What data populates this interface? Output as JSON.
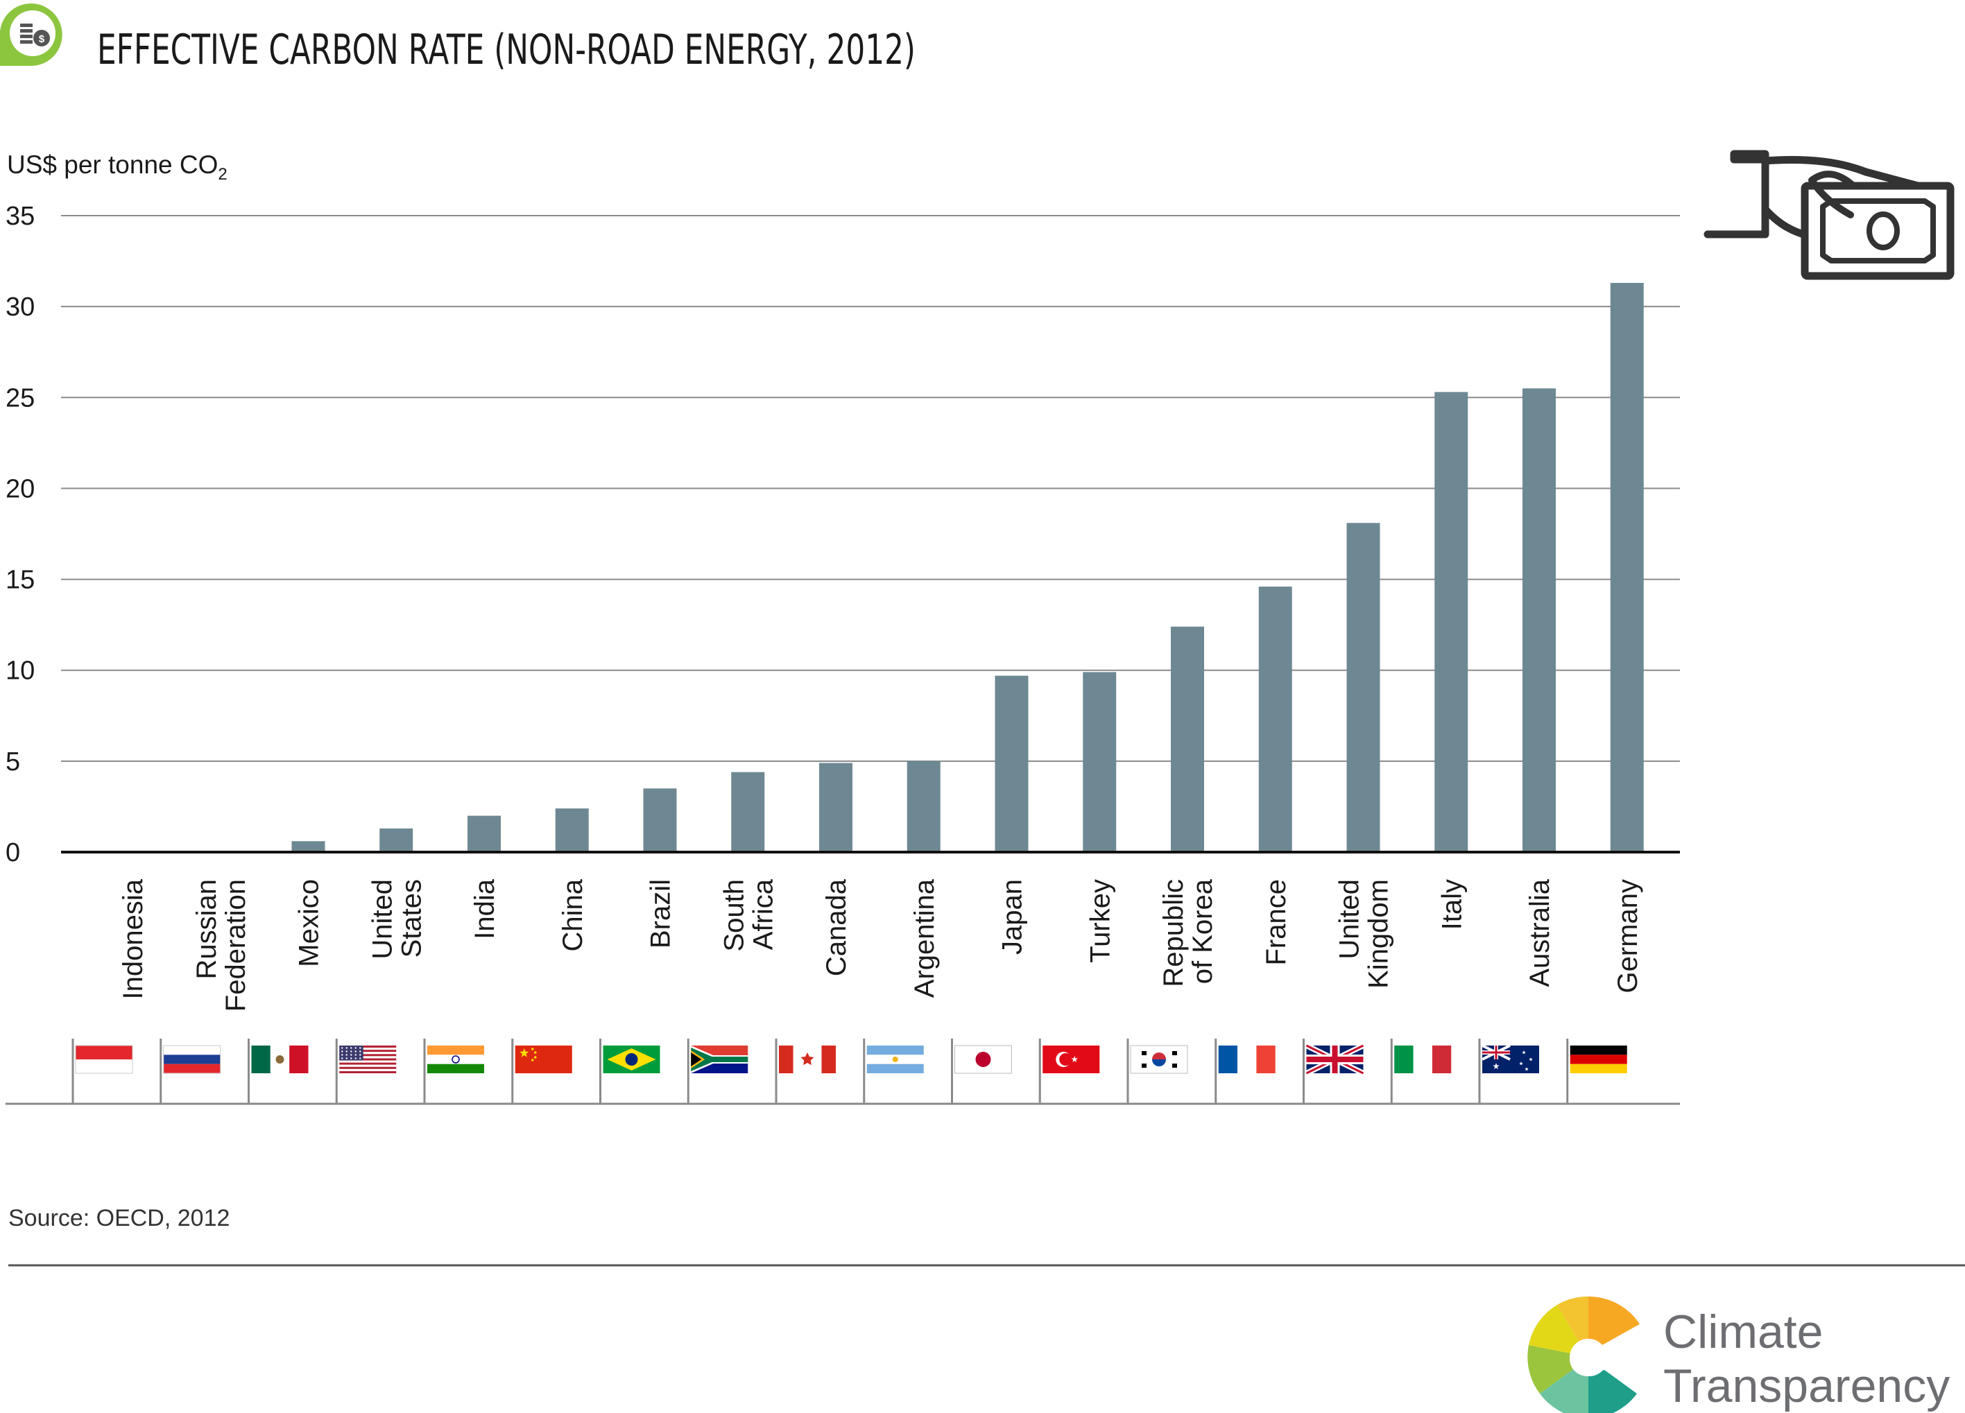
{
  "header": {
    "title": "EFFECTIVE CARBON RATE (NON-ROAD ENERGY, 2012)",
    "badge_icon": "coins-icon"
  },
  "colors": {
    "bar": "#6e8893",
    "grid": "#8a8a8a",
    "axis": "#111111",
    "text": "#1a1a1a",
    "badge_green": "#8cc63f"
  },
  "chart_data": {
    "type": "bar",
    "title": "EFFECTIVE CARBON RATE (NON-ROAD ENERGY, 2012)",
    "ylabel": "US$ per tonne CO",
    "ylabel_subscript": "2",
    "xlabel": "",
    "ylim": [
      0,
      35
    ],
    "yticks": [
      0,
      5,
      10,
      15,
      20,
      25,
      30,
      35
    ],
    "grid": true,
    "categories": [
      "Indonesia",
      "Russian Federation",
      "Mexico",
      "United States",
      "India",
      "China",
      "Brazil",
      "South Africa",
      "Canada",
      "Argentina",
      "Japan",
      "Turkey",
      "Republic of Korea",
      "France",
      "United Kingdom",
      "Italy",
      "Australia",
      "Germany"
    ],
    "category_label_lines": [
      [
        "Indonesia"
      ],
      [
        "Russian",
        "Federation"
      ],
      [
        "Mexico"
      ],
      [
        "United",
        "States"
      ],
      [
        "India"
      ],
      [
        "China"
      ],
      [
        "Brazil"
      ],
      [
        "South",
        "Africa"
      ],
      [
        "Canada"
      ],
      [
        "Argentina"
      ],
      [
        "Japan"
      ],
      [
        "Turkey"
      ],
      [
        "Republic",
        "of Korea"
      ],
      [
        "France"
      ],
      [
        "United",
        "Kingdom"
      ],
      [
        "Italy"
      ],
      [
        "Australia"
      ],
      [
        "Germany"
      ]
    ],
    "values": [
      0,
      0,
      0.6,
      1.3,
      2.0,
      2.4,
      3.5,
      4.4,
      4.9,
      5.0,
      9.7,
      9.9,
      12.4,
      14.6,
      18.1,
      25.3,
      25.5,
      31.3
    ],
    "flags": [
      "indonesia-flag-icon",
      "russia-flag-icon",
      "mexico-flag-icon",
      "united-states-flag-icon",
      "india-flag-icon",
      "china-flag-icon",
      "brazil-flag-icon",
      "south-africa-flag-icon",
      "canada-flag-icon",
      "argentina-flag-icon",
      "japan-flag-icon",
      "turkey-flag-icon",
      "korea-flag-icon",
      "france-flag-icon",
      "united-kingdom-flag-icon",
      "italy-flag-icon",
      "australia-flag-icon",
      "germany-flag-icon"
    ]
  },
  "source": "Source: OECD, 2012",
  "decoration": {
    "icon": "hand-money-icon"
  },
  "logo": {
    "line1": "Climate",
    "line2": "Transparency",
    "icon": "climate-transparency-logo-icon"
  }
}
